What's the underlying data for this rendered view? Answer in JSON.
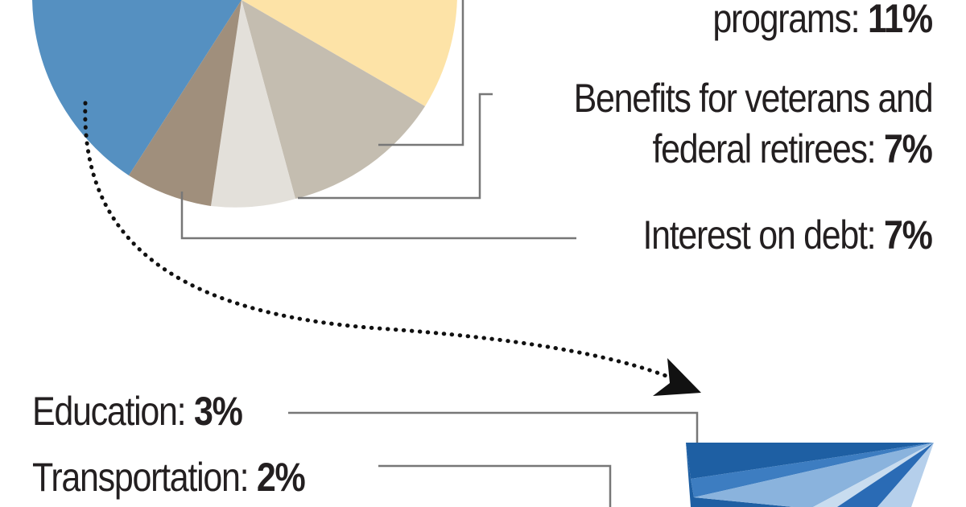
{
  "chart_data": {
    "type": "pie",
    "top_pie": {
      "slices": [
        {
          "name": "",
          "color": "#5590c1"
        },
        {
          "name": "",
          "color": "#fde3a7"
        },
        {
          "name": "",
          "color": "#c4bdb0"
        },
        {
          "name": "",
          "color": "#e3e0da"
        },
        {
          "name": "",
          "color": "#a08f7c"
        }
      ]
    },
    "labels": [
      {
        "text": "programs: ",
        "value": "11%"
      },
      {
        "text": "Benefits for veterans and",
        "value": ""
      },
      {
        "text": "federal retirees: ",
        "value": "7%"
      },
      {
        "text": "Interest on debt: ",
        "value": "7%"
      },
      {
        "text": "Education: ",
        "value": "3%"
      },
      {
        "text": "Transportation: ",
        "value": "2%"
      }
    ],
    "bottom_fan": {
      "colors": [
        "#1e5fa3",
        "#3d7dc1",
        "#8ab3dd",
        "#c8dcef",
        "#2a6bb5",
        "#b5cfeb"
      ]
    },
    "annotations": {
      "leader_line_color": "#777777",
      "arrow_color": "#111111"
    }
  }
}
